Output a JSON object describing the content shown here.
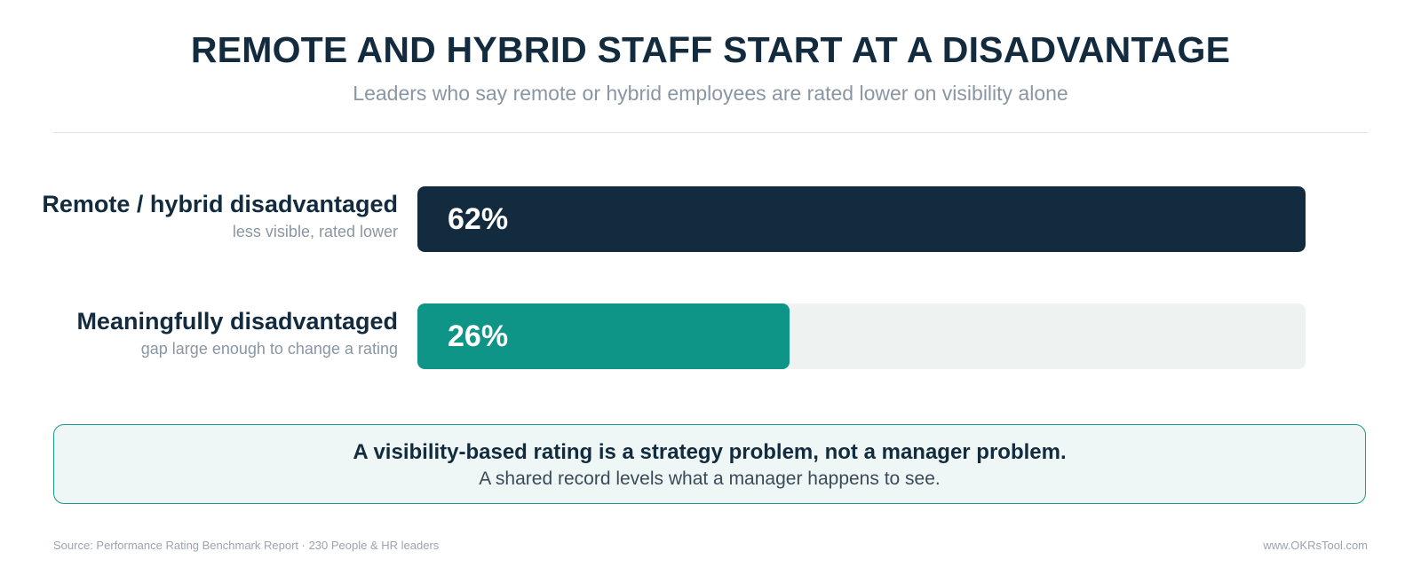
{
  "header": {
    "title": "REMOTE AND HYBRID STAFF START AT A DISADVANTAGE",
    "subtitle": "Leaders who say remote or hybrid employees are rated lower on visibility alone"
  },
  "chart_data": {
    "type": "bar",
    "orientation": "horizontal",
    "title": "REMOTE AND HYBRID STAFF START AT A DISADVANTAGE",
    "subtitle": "Leaders who say remote or hybrid employees are rated lower on visibility alone",
    "xlim": [
      0,
      62
    ],
    "bars": [
      {
        "label": "Remote / hybrid disadvantaged",
        "sublabel": "less visible, rated lower",
        "value": 62,
        "value_label": "62%",
        "color": "#132b3e"
      },
      {
        "label": "Meaningfully disadvantaged",
        "sublabel": "gap large enough to change a rating",
        "value": 26,
        "value_label": "26%",
        "color": "#0f9587"
      }
    ],
    "track_color": "#eef3f2"
  },
  "callout": {
    "headline": "A visibility-based rating is a strategy problem, not a manager problem.",
    "body": "A shared record levels what a manager happens to see."
  },
  "footer": {
    "source": "Source: Performance Rating Benchmark Report · 230 People & HR leaders",
    "site": "www.OKRsTool.com"
  }
}
